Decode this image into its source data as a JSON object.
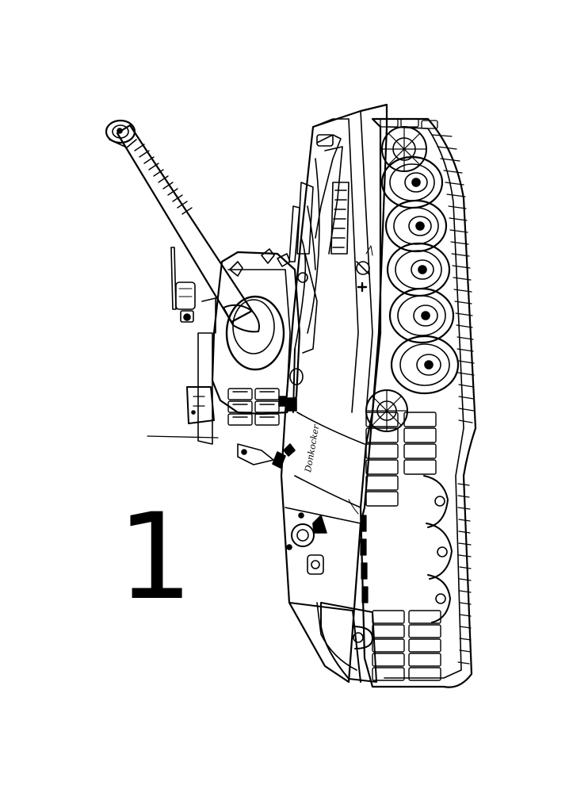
{
  "page": {
    "number": "1",
    "background": "#ffffff",
    "ink_color": "#000000"
  },
  "illustration": {
    "subject": "tank-line-drawing",
    "hull_marking": "Donkocker"
  }
}
